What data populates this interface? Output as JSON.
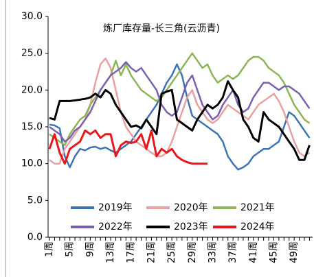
{
  "chart_data": {
    "type": "line",
    "title": "炼厂库存量-长三角(云沥青)",
    "categories": [
      "1周",
      null,
      null,
      null,
      "5周",
      null,
      null,
      null,
      "9周",
      null,
      null,
      null,
      "13周",
      null,
      null,
      null,
      "17周",
      null,
      null,
      null,
      "21周",
      null,
      null,
      null,
      "25周",
      null,
      null,
      null,
      "29周",
      null,
      null,
      null,
      "33周",
      null,
      null,
      null,
      "37周",
      null,
      null,
      null,
      "41周",
      null,
      null,
      null,
      "45周",
      null,
      null,
      null,
      "49周",
      null,
      null,
      null
    ],
    "series": [
      {
        "name": "2019年",
        "color": "#3a73b8",
        "values": [
          15.3,
          15.2,
          14.8,
          11,
          9.5,
          11,
          12,
          11.8,
          12.2,
          12.3,
          12,
          12.2,
          11.8,
          11.5,
          12,
          12.5,
          13,
          14,
          15,
          16,
          17,
          18,
          19.5,
          21,
          22,
          23.5,
          22,
          19,
          16.5,
          16,
          15.5,
          15,
          14.5,
          14,
          13,
          11,
          10,
          9.2,
          9.5,
          10,
          11,
          11.5,
          12,
          12,
          12.5,
          13,
          15,
          17,
          16.5,
          15.5,
          14.5,
          13.5
        ]
      },
      {
        "name": "2020年",
        "color": "#e8a0a0",
        "values": [
          10.5,
          10,
          10,
          12,
          13,
          14,
          15,
          16,
          18,
          21,
          23.5,
          24.3,
          23,
          20,
          17,
          15,
          14,
          13,
          12.5,
          12,
          11.5,
          11,
          11,
          11.5,
          13,
          15,
          17,
          19,
          20,
          18,
          17,
          16,
          15.5,
          16,
          17,
          18,
          17.5,
          17,
          16.5,
          16,
          17,
          18,
          18.5,
          19,
          19.5,
          18.5,
          17,
          15,
          13,
          11.5,
          11,
          11.5
        ]
      },
      {
        "name": "2021年",
        "color": "#8cb553",
        "values": [
          14,
          13.5,
          13,
          12.5,
          14,
          15,
          16,
          16.5,
          18,
          19,
          20,
          21,
          22,
          24,
          22,
          23.5,
          22,
          21,
          20,
          19.5,
          19,
          18.5,
          19,
          20,
          21,
          22,
          23,
          24,
          25,
          24,
          23,
          23.5,
          22,
          21,
          21.5,
          22,
          21.5,
          22,
          23,
          24,
          24.5,
          24.5,
          24,
          23,
          22.5,
          22,
          21,
          19.5,
          18,
          17,
          16,
          15.5
        ]
      },
      {
        "name": "2022年",
        "color": "#7b5fb0",
        "values": [
          15,
          14.5,
          14,
          13,
          13.5,
          14.5,
          15,
          16,
          17,
          18.5,
          20,
          21,
          22,
          22.5,
          23,
          23.8,
          23,
          22.5,
          23,
          22,
          21,
          20,
          18,
          17,
          16.5,
          17,
          19,
          21,
          22,
          20,
          18,
          17,
          16,
          16.5,
          18,
          19,
          20,
          18,
          17,
          17.5,
          19,
          20,
          21,
          21,
          20.5,
          20,
          20.5,
          20.5,
          20,
          19.5,
          18.5,
          17.5
        ]
      },
      {
        "name": "2023年",
        "color": "#000000",
        "values": [
          16.2,
          16,
          18.5,
          18.5,
          18.5,
          18.6,
          18.7,
          18.8,
          19,
          19.5,
          19,
          20,
          19.5,
          18,
          17,
          16,
          15,
          15.2,
          14.8,
          16,
          15,
          14,
          19.5,
          19.8,
          20,
          16,
          15.5,
          15,
          14.5,
          16,
          17,
          18,
          17.5,
          18,
          19,
          21.2,
          20,
          19,
          16,
          15,
          13.5,
          13,
          17,
          16,
          15.5,
          15,
          14,
          13,
          12,
          10.5,
          10.5,
          12.5
        ]
      },
      {
        "name": "2024年",
        "color": "#e8151b",
        "values": [
          12,
          14,
          11.5,
          10,
          12,
          12.5,
          13,
          14.5,
          14,
          14.5,
          13.5,
          14,
          14,
          11,
          12.5,
          13,
          12.8,
          13,
          14,
          12,
          14.5,
          11,
          12,
          11.5,
          12,
          11,
          10.5,
          10.2,
          10,
          10,
          10,
          10,
          null,
          null,
          null,
          null,
          null,
          null,
          null,
          null,
          null,
          null,
          null,
          null,
          null,
          null,
          null,
          null,
          null,
          null,
          null,
          null
        ]
      }
    ],
    "ylim": [
      0,
      30
    ],
    "yticks": [
      {
        "value": 0,
        "label": "0.0"
      },
      {
        "value": 5,
        "label": "5.0"
      },
      {
        "value": 10,
        "label": "10.0"
      },
      {
        "value": 15,
        "label": "15.0"
      },
      {
        "value": 20,
        "label": "20.0"
      },
      {
        "value": 25,
        "label": "25.0"
      },
      {
        "value": 30,
        "label": "30.0"
      }
    ]
  }
}
